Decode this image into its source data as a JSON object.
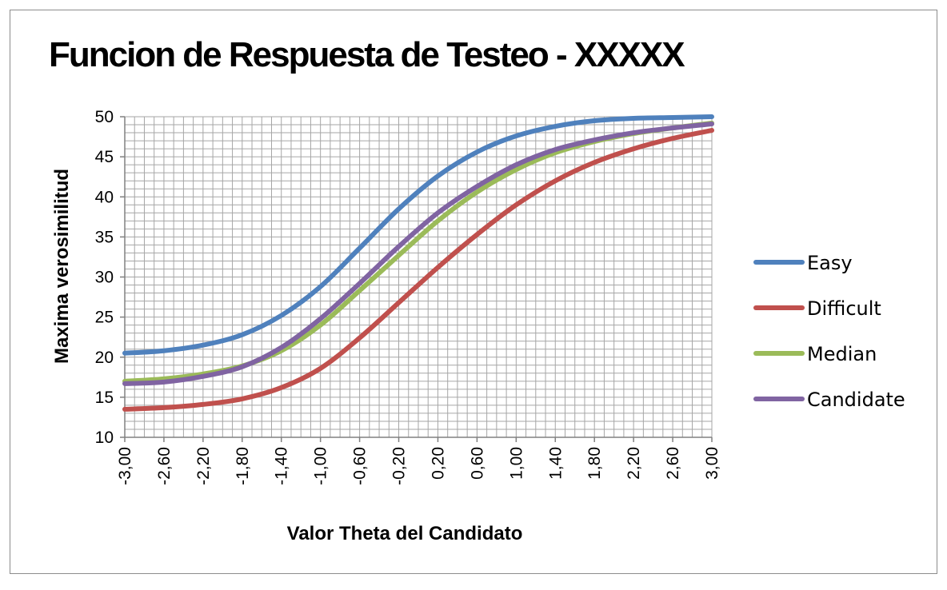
{
  "chart_data": {
    "type": "line",
    "title": "Funcion de Respuesta de Testeo - XXXXX",
    "xlabel": "Valor Theta del Candidato",
    "ylabel": "Maxima verosimilitud",
    "ylim": [
      10,
      50
    ],
    "yticks": [
      "10",
      "15",
      "20",
      "25",
      "30",
      "35",
      "40",
      "45",
      "50"
    ],
    "xticks": [
      "-3,00",
      "-2,60",
      "-2,20",
      "-1,80",
      "-1,40",
      "-1,00",
      "-0,60",
      "-0,20",
      "0,20",
      "0,60",
      "1,00",
      "1,40",
      "1,80",
      "2,20",
      "2,60",
      "3,00"
    ],
    "x": [
      -3.0,
      -2.6,
      -2.2,
      -1.8,
      -1.4,
      -1.0,
      -0.6,
      -0.2,
      0.2,
      0.6,
      1.0,
      1.4,
      1.8,
      2.2,
      2.6,
      3.0
    ],
    "grid": true,
    "legend": "right",
    "series": [
      {
        "name": "Easy",
        "color": "#4f81bd",
        "values": [
          20.5,
          20.8,
          21.5,
          22.8,
          25.2,
          28.8,
          33.6,
          38.5,
          42.6,
          45.6,
          47.6,
          48.8,
          49.5,
          49.8,
          49.9,
          50.0
        ]
      },
      {
        "name": "Difficult",
        "color": "#c0504d",
        "values": [
          13.5,
          13.7,
          14.1,
          14.8,
          16.2,
          18.6,
          22.4,
          26.8,
          31.2,
          35.3,
          39.0,
          42.0,
          44.3,
          46.0,
          47.3,
          48.3
        ]
      },
      {
        "name": "Median",
        "color": "#9bbb59",
        "values": [
          17.0,
          17.3,
          17.9,
          18.9,
          20.8,
          24.0,
          28.3,
          32.7,
          37.0,
          40.6,
          43.4,
          45.5,
          46.9,
          47.9,
          48.6,
          49.2
        ]
      },
      {
        "name": "Candidate",
        "color": "#8064a2",
        "values": [
          16.7,
          16.9,
          17.6,
          18.8,
          21.2,
          24.8,
          29.2,
          33.8,
          38.0,
          41.3,
          44.0,
          45.9,
          47.1,
          48.0,
          48.6,
          49.1
        ]
      }
    ]
  }
}
